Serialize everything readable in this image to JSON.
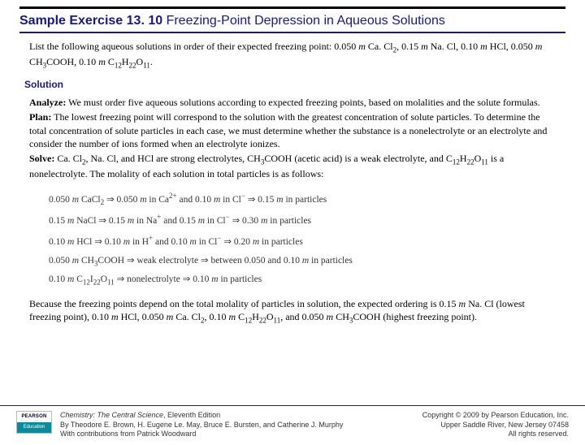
{
  "title": {
    "bold": "Sample Exercise 13. 10",
    "rest": " Freezing-Point Depression in Aqueous Solutions"
  },
  "intro": {
    "lead": "List the following aqueous solutions in order of their expected freezing point: 0.050 ",
    "m1": "m",
    "s1": " Ca. Cl",
    "sub1": "2",
    "s2": ", 0.15 ",
    "m2": "m",
    "s3": " Na. Cl, 0.10 ",
    "m3": "m",
    "s4": " HCl, 0.050 ",
    "m4": "m",
    "s5": " CH",
    "sub2": "3",
    "s6": "COOH, 0.10 ",
    "m5": "m",
    "s7": " C",
    "sub3": "12",
    "s8": "H",
    "sub4": "22",
    "s9": "O",
    "sub5": "11",
    "s10": "."
  },
  "solution_label": "Solution",
  "analyze": {
    "label": "Analyze:",
    "text": " We must order five aqueous solutions according to expected freezing points, based on molalities and the solute formulas."
  },
  "plan": {
    "label": "Plan:",
    "text": " The lowest freezing point will correspond to the solution with the greatest concentration of solute particles. To determine the total concentration of solute particles in each case, we must determine whether the substance is a nonelectrolyte or an electrolyte and consider the number of ions formed when an electrolyte ionizes."
  },
  "solve": {
    "label": "Solve:",
    "t1": " Ca. Cl",
    "sub1": "2",
    "t2": ", Na. Cl, and HCl are strong electrolytes, CH",
    "sub2": "3",
    "t3": "COOH (acetic acid) is a weak electrolyte, and C",
    "sub3": "12",
    "t4": "H",
    "sub4": "22",
    "t5": "O",
    "sub5": "11",
    "t6": " is a nonelectrolyte. The molality of each solution in total particles is as follows:"
  },
  "eqns": {
    "l1a": "0.050 ",
    "l1b": " CaCl",
    "l1c": " ⇒ 0.050 ",
    "l1d": " in Ca",
    "l1e": " and 0.10 ",
    "l1f": " in Cl",
    "l1g": " ⇒ 0.15 ",
    "l1h": " in particles",
    "l2a": "0.15 ",
    "l2b": " NaCl ⇒ 0.15 ",
    "l2c": " in Na",
    "l2d": " and 0.15 ",
    "l2e": " in Cl",
    "l2f": " ⇒ 0.30 ",
    "l2g": " in particles",
    "l3a": "0.10 ",
    "l3b": " HCl ⇒ 0.10 ",
    "l3c": " in H",
    "l3d": " and 0.10 ",
    "l3e": " in Cl",
    "l3f": " ⇒ 0.20 ",
    "l3g": " in particles",
    "l4a": "0.050 ",
    "l4b": " CH",
    "l4c": "COOH ⇒ weak electrolyte ⇒ between 0.050 and 0.10 ",
    "l4d": " in particles",
    "l5a": "0.10 ",
    "l5b": " C",
    "l5c": "I",
    "l5d": "O",
    "l5e": " ⇒ nonelectrolyte ⇒ 0.10 ",
    "l5f": " in particles"
  },
  "concl": {
    "t1": "Because the freezing points depend on the total molality of particles in solution, the expected ordering is 0.15 ",
    "m1": "m",
    "t2": " Na. Cl (lowest freezing point), 0.10 ",
    "m2": "m",
    "t3": " HCl, 0.050 ",
    "m3": "m",
    "t4": " Ca. Cl",
    "sub1": "2",
    "t5": ", 0.10 ",
    "m4": "m",
    "t6": " C",
    "sub2": "12",
    "t7": "H",
    "sub3": "22",
    "t8": "O",
    "sub4": "11",
    "t9": ", and 0.050 ",
    "m5": "m",
    "t10": " CH",
    "sub5": "3",
    "t11": "COOH (highest freezing point)."
  },
  "footer": {
    "logo_top": "PEARSON",
    "logo_bot": "Education",
    "left1": "Chemistry: The Central Science",
    "left1b": ", Eleventh Edition",
    "left2": "By Theodore E. Brown, H. Eugene Le. May, Bruce E. Bursten, and Catherine J. Murphy",
    "left3": "With contributions from Patrick Woodward",
    "right1": "Copyright © 2009 by Pearson Education, Inc.",
    "right2": "Upper Saddle River, New Jersey 07458",
    "right3": "All rights reserved."
  }
}
